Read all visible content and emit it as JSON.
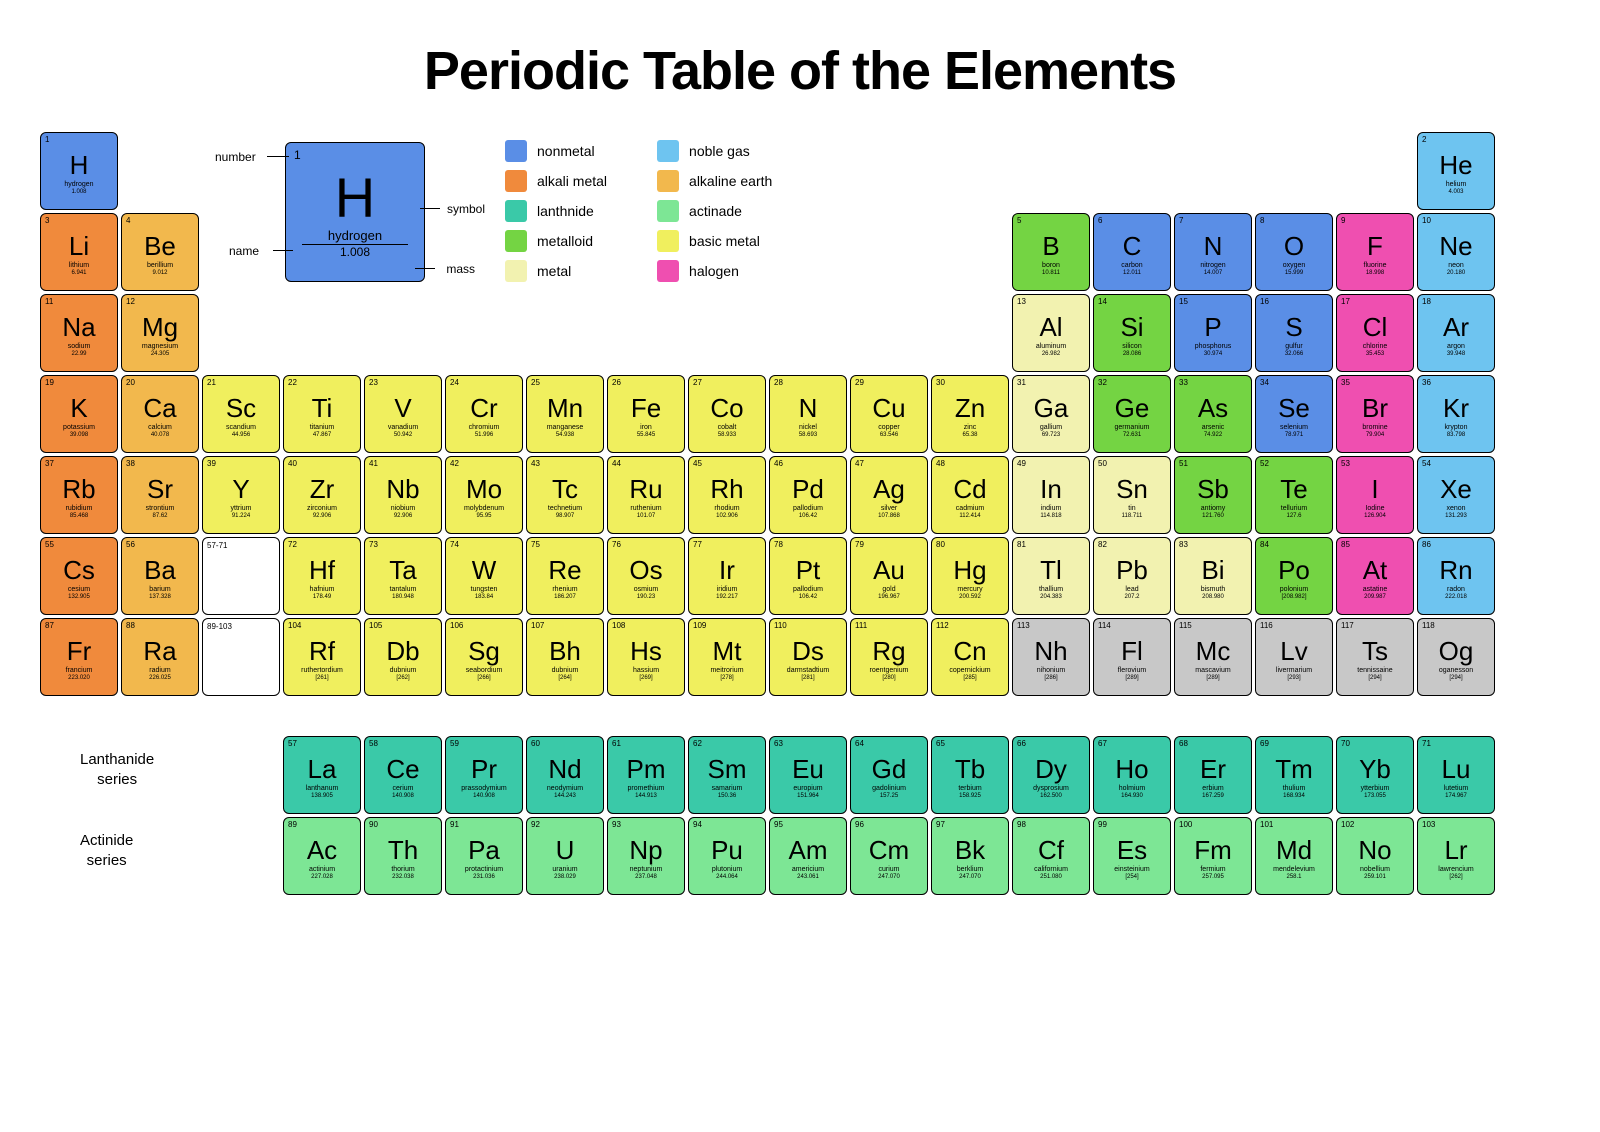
{
  "title": "Periodic Table of the Elements",
  "colors": {
    "nonmetal": "#5a8ee6",
    "alkali_metal": "#f08a3c",
    "lanthanide": "#3ac9a8",
    "metalloid": "#74d443",
    "metal": "#f2f2b0",
    "noble_gas": "#6ec4f0",
    "alkaline_earth": "#f2b84d",
    "actinide": "#7de695",
    "basic_metal": "#f0ef5e",
    "halogen": "#ef4fb0",
    "unknown": "#c8c8c8",
    "background": "#ffffff"
  },
  "legend": [
    {
      "key": "nonmetal",
      "label": "nonmetal"
    },
    {
      "key": "alkali_metal",
      "label": "alkali metal"
    },
    {
      "key": "lanthanide",
      "label": "lanthnide"
    },
    {
      "key": "metalloid",
      "label": "metalloid"
    },
    {
      "key": "metal",
      "label": "metal"
    },
    {
      "key": "noble_gas",
      "label": "noble gas"
    },
    {
      "key": "alkaline_earth",
      "label": "alkaline earth"
    },
    {
      "key": "actinide",
      "label": "actinade"
    },
    {
      "key": "basic_metal",
      "label": "basic metal"
    },
    {
      "key": "halogen",
      "label": "halogen"
    }
  ],
  "key_sample": {
    "number": "1",
    "symbol": "H",
    "name": "hydrogen",
    "mass": "1.008",
    "labels": {
      "number": "number",
      "symbol": "symbol",
      "name": "name",
      "mass": "mass"
    }
  },
  "series_labels": {
    "lanthanide": "Lanthanide\nseries",
    "actinide": "Actinide\nseries",
    "placeholder1": "57-71",
    "placeholder2": "89-103"
  },
  "elements": [
    {
      "n": 1,
      "sym": "H",
      "name": "hydrogen",
      "mass": "1.008",
      "cat": "nonmetal",
      "row": 1,
      "col": 1
    },
    {
      "n": 2,
      "sym": "He",
      "name": "helium",
      "mass": "4.003",
      "cat": "noble_gas",
      "row": 1,
      "col": 18
    },
    {
      "n": 3,
      "sym": "Li",
      "name": "lithium",
      "mass": "6.941",
      "cat": "alkali_metal",
      "row": 2,
      "col": 1
    },
    {
      "n": 4,
      "sym": "Be",
      "name": "berillium",
      "mass": "9.012",
      "cat": "alkaline_earth",
      "row": 2,
      "col": 2
    },
    {
      "n": 5,
      "sym": "B",
      "name": "boron",
      "mass": "10.811",
      "cat": "metalloid",
      "row": 2,
      "col": 13
    },
    {
      "n": 6,
      "sym": "C",
      "name": "carbon",
      "mass": "12.011",
      "cat": "nonmetal",
      "row": 2,
      "col": 14
    },
    {
      "n": 7,
      "sym": "N",
      "name": "nitrogen",
      "mass": "14.007",
      "cat": "nonmetal",
      "row": 2,
      "col": 15
    },
    {
      "n": 8,
      "sym": "O",
      "name": "oxygen",
      "mass": "15.999",
      "cat": "nonmetal",
      "row": 2,
      "col": 16
    },
    {
      "n": 9,
      "sym": "F",
      "name": "fluorine",
      "mass": "18.998",
      "cat": "halogen",
      "row": 2,
      "col": 17
    },
    {
      "n": 10,
      "sym": "Ne",
      "name": "neon",
      "mass": "20.180",
      "cat": "noble_gas",
      "row": 2,
      "col": 18
    },
    {
      "n": 11,
      "sym": "Na",
      "name": "sodium",
      "mass": "22.99",
      "cat": "alkali_metal",
      "row": 3,
      "col": 1
    },
    {
      "n": 12,
      "sym": "Mg",
      "name": "magnesium",
      "mass": "24.305",
      "cat": "alkaline_earth",
      "row": 3,
      "col": 2
    },
    {
      "n": 13,
      "sym": "Al",
      "name": "aluminum",
      "mass": "26.982",
      "cat": "metal",
      "row": 3,
      "col": 13
    },
    {
      "n": 14,
      "sym": "Si",
      "name": "silicon",
      "mass": "28.086",
      "cat": "metalloid",
      "row": 3,
      "col": 14
    },
    {
      "n": 15,
      "sym": "P",
      "name": "phosphorus",
      "mass": "30.974",
      "cat": "nonmetal",
      "row": 3,
      "col": 15
    },
    {
      "n": 16,
      "sym": "S",
      "name": "gulfur",
      "mass": "32.066",
      "cat": "nonmetal",
      "row": 3,
      "col": 16
    },
    {
      "n": 17,
      "sym": "Cl",
      "name": "chlorine",
      "mass": "35.453",
      "cat": "halogen",
      "row": 3,
      "col": 17
    },
    {
      "n": 18,
      "sym": "Ar",
      "name": "argon",
      "mass": "39.948",
      "cat": "noble_gas",
      "row": 3,
      "col": 18
    },
    {
      "n": 19,
      "sym": "K",
      "name": "potassium",
      "mass": "39.098",
      "cat": "alkali_metal",
      "row": 4,
      "col": 1
    },
    {
      "n": 20,
      "sym": "Ca",
      "name": "calcium",
      "mass": "40.078",
      "cat": "alkaline_earth",
      "row": 4,
      "col": 2
    },
    {
      "n": 21,
      "sym": "Sc",
      "name": "scandium",
      "mass": "44.956",
      "cat": "basic_metal",
      "row": 4,
      "col": 3
    },
    {
      "n": 22,
      "sym": "Ti",
      "name": "titanium",
      "mass": "47.867",
      "cat": "basic_metal",
      "row": 4,
      "col": 4
    },
    {
      "n": 23,
      "sym": "V",
      "name": "vanadium",
      "mass": "50.942",
      "cat": "basic_metal",
      "row": 4,
      "col": 5
    },
    {
      "n": 24,
      "sym": "Cr",
      "name": "chromium",
      "mass": "51.996",
      "cat": "basic_metal",
      "row": 4,
      "col": 6
    },
    {
      "n": 25,
      "sym": "Mn",
      "name": "manganese",
      "mass": "54.938",
      "cat": "basic_metal",
      "row": 4,
      "col": 7
    },
    {
      "n": 26,
      "sym": "Fe",
      "name": "iron",
      "mass": "55.845",
      "cat": "basic_metal",
      "row": 4,
      "col": 8
    },
    {
      "n": 27,
      "sym": "Co",
      "name": "cobalt",
      "mass": "58.933",
      "cat": "basic_metal",
      "row": 4,
      "col": 9
    },
    {
      "n": 28,
      "sym": "N",
      "name": "nickel",
      "mass": "58.693",
      "cat": "basic_metal",
      "row": 4,
      "col": 10
    },
    {
      "n": 29,
      "sym": "Cu",
      "name": "copper",
      "mass": "63.546",
      "cat": "basic_metal",
      "row": 4,
      "col": 11
    },
    {
      "n": 30,
      "sym": "Zn",
      "name": "zinc",
      "mass": "65.38",
      "cat": "basic_metal",
      "row": 4,
      "col": 12
    },
    {
      "n": 31,
      "sym": "Ga",
      "name": "gallium",
      "mass": "69.723",
      "cat": "metal",
      "row": 4,
      "col": 13
    },
    {
      "n": 32,
      "sym": "Ge",
      "name": "germanium",
      "mass": "72.631",
      "cat": "metalloid",
      "row": 4,
      "col": 14
    },
    {
      "n": 33,
      "sym": "As",
      "name": "arsenic",
      "mass": "74.922",
      "cat": "metalloid",
      "row": 4,
      "col": 15
    },
    {
      "n": 34,
      "sym": "Se",
      "name": "selenium",
      "mass": "78.971",
      "cat": "nonmetal",
      "row": 4,
      "col": 16
    },
    {
      "n": 35,
      "sym": "Br",
      "name": "bromine",
      "mass": "79.904",
      "cat": "halogen",
      "row": 4,
      "col": 17
    },
    {
      "n": 36,
      "sym": "Kr",
      "name": "krypton",
      "mass": "83.798",
      "cat": "noble_gas",
      "row": 4,
      "col": 18
    },
    {
      "n": 37,
      "sym": "Rb",
      "name": "rubidium",
      "mass": "85.468",
      "cat": "alkali_metal",
      "row": 5,
      "col": 1
    },
    {
      "n": 38,
      "sym": "Sr",
      "name": "strontium",
      "mass": "87.62",
      "cat": "alkaline_earth",
      "row": 5,
      "col": 2
    },
    {
      "n": 39,
      "sym": "Y",
      "name": "yttrium",
      "mass": "91.224",
      "cat": "basic_metal",
      "row": 5,
      "col": 3
    },
    {
      "n": 40,
      "sym": "Zr",
      "name": "zirconium",
      "mass": "92.906",
      "cat": "basic_metal",
      "row": 5,
      "col": 4
    },
    {
      "n": 41,
      "sym": "Nb",
      "name": "niobium",
      "mass": "92.906",
      "cat": "basic_metal",
      "row": 5,
      "col": 5
    },
    {
      "n": 42,
      "sym": "Mo",
      "name": "molybdenum",
      "mass": "95.95",
      "cat": "basic_metal",
      "row": 5,
      "col": 6
    },
    {
      "n": 43,
      "sym": "Tc",
      "name": "technetium",
      "mass": "98.907",
      "cat": "basic_metal",
      "row": 5,
      "col": 7
    },
    {
      "n": 44,
      "sym": "Ru",
      "name": "ruthenium",
      "mass": "101.07",
      "cat": "basic_metal",
      "row": 5,
      "col": 8
    },
    {
      "n": 45,
      "sym": "Rh",
      "name": "rhodium",
      "mass": "102.906",
      "cat": "basic_metal",
      "row": 5,
      "col": 9
    },
    {
      "n": 46,
      "sym": "Pd",
      "name": "pallodium",
      "mass": "106.42",
      "cat": "basic_metal",
      "row": 5,
      "col": 10
    },
    {
      "n": 47,
      "sym": "Ag",
      "name": "silver",
      "mass": "107.868",
      "cat": "basic_metal",
      "row": 5,
      "col": 11
    },
    {
      "n": 48,
      "sym": "Cd",
      "name": "cadmium",
      "mass": "112.414",
      "cat": "basic_metal",
      "row": 5,
      "col": 12
    },
    {
      "n": 49,
      "sym": "In",
      "name": "indium",
      "mass": "114.818",
      "cat": "metal",
      "row": 5,
      "col": 13
    },
    {
      "n": 50,
      "sym": "Sn",
      "name": "tin",
      "mass": "118.711",
      "cat": "metal",
      "row": 5,
      "col": 14
    },
    {
      "n": 51,
      "sym": "Sb",
      "name": "antiomy",
      "mass": "121.760",
      "cat": "metalloid",
      "row": 5,
      "col": 15
    },
    {
      "n": 52,
      "sym": "Te",
      "name": "tellurium",
      "mass": "127.6",
      "cat": "metalloid",
      "row": 5,
      "col": 16
    },
    {
      "n": 53,
      "sym": "I",
      "name": "Iodine",
      "mass": "126.904",
      "cat": "halogen",
      "row": 5,
      "col": 17
    },
    {
      "n": 54,
      "sym": "Xe",
      "name": "xenon",
      "mass": "131.293",
      "cat": "noble_gas",
      "row": 5,
      "col": 18
    },
    {
      "n": 55,
      "sym": "Cs",
      "name": "cesium",
      "mass": "132.905",
      "cat": "alkali_metal",
      "row": 6,
      "col": 1
    },
    {
      "n": 56,
      "sym": "Ba",
      "name": "barium",
      "mass": "137.328",
      "cat": "alkaline_earth",
      "row": 6,
      "col": 2
    },
    {
      "n": 72,
      "sym": "Hf",
      "name": "hafnium",
      "mass": "178.49",
      "cat": "basic_metal",
      "row": 6,
      "col": 4
    },
    {
      "n": 73,
      "sym": "Ta",
      "name": "tantalum",
      "mass": "180.948",
      "cat": "basic_metal",
      "row": 6,
      "col": 5
    },
    {
      "n": 74,
      "sym": "W",
      "name": "tungsten",
      "mass": "183.84",
      "cat": "basic_metal",
      "row": 6,
      "col": 6
    },
    {
      "n": 75,
      "sym": "Re",
      "name": "rhenium",
      "mass": "186.207",
      "cat": "basic_metal",
      "row": 6,
      "col": 7
    },
    {
      "n": 76,
      "sym": "Os",
      "name": "osmium",
      "mass": "190.23",
      "cat": "basic_metal",
      "row": 6,
      "col": 8
    },
    {
      "n": 77,
      "sym": "Ir",
      "name": "iridium",
      "mass": "192.217",
      "cat": "basic_metal",
      "row": 6,
      "col": 9
    },
    {
      "n": 78,
      "sym": "Pt",
      "name": "pallodium",
      "mass": "106.42",
      "cat": "basic_metal",
      "row": 6,
      "col": 10
    },
    {
      "n": 79,
      "sym": "Au",
      "name": "gold",
      "mass": "196.967",
      "cat": "basic_metal",
      "row": 6,
      "col": 11
    },
    {
      "n": 80,
      "sym": "Hg",
      "name": "mercury",
      "mass": "200.592",
      "cat": "basic_metal",
      "row": 6,
      "col": 12
    },
    {
      "n": 81,
      "sym": "Tl",
      "name": "thallium",
      "mass": "204.383",
      "cat": "metal",
      "row": 6,
      "col": 13
    },
    {
      "n": 82,
      "sym": "Pb",
      "name": "lead",
      "mass": "207.2",
      "cat": "metal",
      "row": 6,
      "col": 14
    },
    {
      "n": 83,
      "sym": "Bi",
      "name": "bismuth",
      "mass": "208.980",
      "cat": "metal",
      "row": 6,
      "col": 15
    },
    {
      "n": 84,
      "sym": "Po",
      "name": "polonium",
      "mass": "[208.982]",
      "cat": "metalloid",
      "row": 6,
      "col": 16
    },
    {
      "n": 85,
      "sym": "At",
      "name": "astatine",
      "mass": "209.987",
      "cat": "halogen",
      "row": 6,
      "col": 17
    },
    {
      "n": 86,
      "sym": "Rn",
      "name": "radon",
      "mass": "222.018",
      "cat": "noble_gas",
      "row": 6,
      "col": 18
    },
    {
      "n": 87,
      "sym": "Fr",
      "name": "francium",
      "mass": "223.020",
      "cat": "alkali_metal",
      "row": 7,
      "col": 1
    },
    {
      "n": 88,
      "sym": "Ra",
      "name": "radium",
      "mass": "226.025",
      "cat": "alkaline_earth",
      "row": 7,
      "col": 2
    },
    {
      "n": 104,
      "sym": "Rf",
      "name": "ruthertordium",
      "mass": "[261]",
      "cat": "basic_metal",
      "row": 7,
      "col": 4
    },
    {
      "n": 105,
      "sym": "Db",
      "name": "dubnium",
      "mass": "[262]",
      "cat": "basic_metal",
      "row": 7,
      "col": 5
    },
    {
      "n": 106,
      "sym": "Sg",
      "name": "seabordium",
      "mass": "[266]",
      "cat": "basic_metal",
      "row": 7,
      "col": 6
    },
    {
      "n": 107,
      "sym": "Bh",
      "name": "dubnium",
      "mass": "[264]",
      "cat": "basic_metal",
      "row": 7,
      "col": 7
    },
    {
      "n": 108,
      "sym": "Hs",
      "name": "hassium",
      "mass": "[269]",
      "cat": "basic_metal",
      "row": 7,
      "col": 8
    },
    {
      "n": 109,
      "sym": "Mt",
      "name": "meitrorium",
      "mass": "[278]",
      "cat": "basic_metal",
      "row": 7,
      "col": 9
    },
    {
      "n": 110,
      "sym": "Ds",
      "name": "darmstadtium",
      "mass": "[281]",
      "cat": "basic_metal",
      "row": 7,
      "col": 10
    },
    {
      "n": 111,
      "sym": "Rg",
      "name": "roentgenium",
      "mass": "[280]",
      "cat": "basic_metal",
      "row": 7,
      "col": 11
    },
    {
      "n": 112,
      "sym": "Cn",
      "name": "copernickium",
      "mass": "[285]",
      "cat": "basic_metal",
      "row": 7,
      "col": 12
    },
    {
      "n": 113,
      "sym": "Nh",
      "name": "nihonium",
      "mass": "[286]",
      "cat": "unknown",
      "row": 7,
      "col": 13
    },
    {
      "n": 114,
      "sym": "Fl",
      "name": "flerovium",
      "mass": "[289]",
      "cat": "unknown",
      "row": 7,
      "col": 14
    },
    {
      "n": 115,
      "sym": "Mc",
      "name": "mascavium",
      "mass": "[289]",
      "cat": "unknown",
      "row": 7,
      "col": 15
    },
    {
      "n": 116,
      "sym": "Lv",
      "name": "livermarium",
      "mass": "[293]",
      "cat": "unknown",
      "row": 7,
      "col": 16
    },
    {
      "n": 117,
      "sym": "Ts",
      "name": "tennissaine",
      "mass": "[294]",
      "cat": "unknown",
      "row": 7,
      "col": 17
    },
    {
      "n": 118,
      "sym": "Og",
      "name": "oganesson",
      "mass": "[294]",
      "cat": "unknown",
      "row": 7,
      "col": 18
    }
  ],
  "lanthanides": [
    {
      "n": 57,
      "sym": "La",
      "name": "lanthanum",
      "mass": "138.905",
      "cat": "lanthanide"
    },
    {
      "n": 58,
      "sym": "Ce",
      "name": "cerium",
      "mass": "140.908",
      "cat": "lanthanide"
    },
    {
      "n": 59,
      "sym": "Pr",
      "name": "prassodymium",
      "mass": "140.908",
      "cat": "lanthanide"
    },
    {
      "n": 60,
      "sym": "Nd",
      "name": "neodymium",
      "mass": "144.243",
      "cat": "lanthanide"
    },
    {
      "n": 61,
      "sym": "Pm",
      "name": "promethium",
      "mass": "144.913",
      "cat": "lanthanide"
    },
    {
      "n": 62,
      "sym": "Sm",
      "name": "samarium",
      "mass": "150.36",
      "cat": "lanthanide"
    },
    {
      "n": 63,
      "sym": "Eu",
      "name": "europium",
      "mass": "151.964",
      "cat": "lanthanide"
    },
    {
      "n": 64,
      "sym": "Gd",
      "name": "gadolinium",
      "mass": "157.25",
      "cat": "lanthanide"
    },
    {
      "n": 65,
      "sym": "Tb",
      "name": "terbium",
      "mass": "158.925",
      "cat": "lanthanide"
    },
    {
      "n": 66,
      "sym": "Dy",
      "name": "dysprosium",
      "mass": "162.500",
      "cat": "lanthanide"
    },
    {
      "n": 67,
      "sym": "Ho",
      "name": "holmium",
      "mass": "164.930",
      "cat": "lanthanide"
    },
    {
      "n": 68,
      "sym": "Er",
      "name": "erbium",
      "mass": "167.259",
      "cat": "lanthanide"
    },
    {
      "n": 69,
      "sym": "Tm",
      "name": "thulium",
      "mass": "168.934",
      "cat": "lanthanide"
    },
    {
      "n": 70,
      "sym": "Yb",
      "name": "ytterbium",
      "mass": "173.055",
      "cat": "lanthanide"
    },
    {
      "n": 71,
      "sym": "Lu",
      "name": "lutetium",
      "mass": "174.967",
      "cat": "lanthanide"
    }
  ],
  "actinides": [
    {
      "n": 89,
      "sym": "Ac",
      "name": "actinium",
      "mass": "227.028",
      "cat": "actinide"
    },
    {
      "n": 90,
      "sym": "Th",
      "name": "thorium",
      "mass": "232.038",
      "cat": "actinide"
    },
    {
      "n": 91,
      "sym": "Pa",
      "name": "protactinium",
      "mass": "231.036",
      "cat": "actinide"
    },
    {
      "n": 92,
      "sym": "U",
      "name": "uranium",
      "mass": "238.029",
      "cat": "actinide"
    },
    {
      "n": 93,
      "sym": "Np",
      "name": "neptunium",
      "mass": "237.048",
      "cat": "actinide"
    },
    {
      "n": 94,
      "sym": "Pu",
      "name": "plutonium",
      "mass": "244.064",
      "cat": "actinide"
    },
    {
      "n": 95,
      "sym": "Am",
      "name": "americium",
      "mass": "243.061",
      "cat": "actinide"
    },
    {
      "n": 96,
      "sym": "Cm",
      "name": "curium",
      "mass": "247.070",
      "cat": "actinide"
    },
    {
      "n": 97,
      "sym": "Bk",
      "name": "berklium",
      "mass": "247.070",
      "cat": "actinide"
    },
    {
      "n": 98,
      "sym": "Cf",
      "name": "californium",
      "mass": "251.080",
      "cat": "actinide"
    },
    {
      "n": 99,
      "sym": "Es",
      "name": "einsteinium",
      "mass": "[254]",
      "cat": "actinide"
    },
    {
      "n": 100,
      "sym": "Fm",
      "name": "fermium",
      "mass": "257.095",
      "cat": "actinide"
    },
    {
      "n": 101,
      "sym": "Md",
      "name": "mendelevium",
      "mass": "258.1",
      "cat": "actinide"
    },
    {
      "n": 102,
      "sym": "No",
      "name": "nobellium",
      "mass": "259.101",
      "cat": "actinide"
    },
    {
      "n": 103,
      "sym": "Lr",
      "name": "lawrencium",
      "mass": "[262]",
      "cat": "actinide"
    }
  ]
}
